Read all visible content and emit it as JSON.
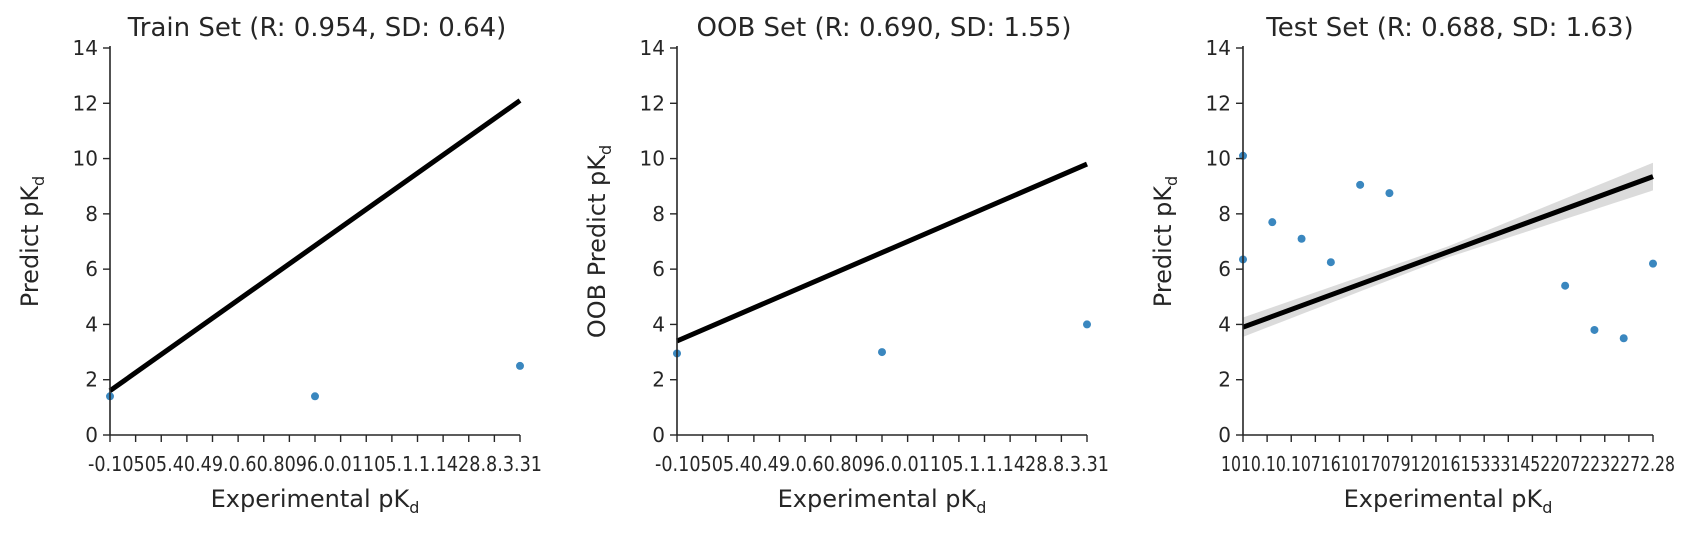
{
  "colors": {
    "points": "#3a87bf",
    "line": "#000000",
    "band": "#bdbdbd",
    "axes": "#262626"
  },
  "chart_data": [
    {
      "type": "scatter",
      "title": "Train Set (R: 0.954, SD: 0.64)",
      "xlabel": "Experimental pK",
      "xlabel_sub": "d",
      "ylabel": "Predict pK",
      "ylabel_sub": "d",
      "xticks": [
        "-0.1",
        "0.05",
        "0.4",
        "0.49",
        "0.6",
        "0.8",
        "0.9",
        "6.1",
        "0.01",
        "0.1",
        "0.5",
        "1.1",
        "1.2",
        "4",
        "2.8",
        "8.3",
        "3.31"
      ],
      "xtick_text": "-0.10505.40.49.0.60.8096.0.01105.1.1.1428.8.3.31",
      "yticks": [
        0,
        2,
        4,
        6,
        8,
        10,
        12,
        14
      ],
      "ylim": [
        0,
        14
      ],
      "x": [
        0,
        8,
        16
      ],
      "y": [
        1.4,
        1.4,
        2.5
      ],
      "xrange": [
        0,
        16
      ],
      "fit": {
        "x": [
          0,
          16
        ],
        "y": [
          1.6,
          12.1
        ]
      },
      "band": false
    },
    {
      "type": "scatter",
      "title": "OOB Set (R: 0.690, SD: 1.55)",
      "xlabel": "Experimental pK",
      "xlabel_sub": "d",
      "ylabel": "OOB Predict pK",
      "ylabel_sub": "d",
      "xticks": [
        "-0.1",
        "0.05",
        "0.4",
        "0.49",
        "0.6",
        "0.8",
        "0.9",
        "6.1",
        "0.01",
        "0.1",
        "0.5",
        "1.1",
        "1.2",
        "4",
        "2.8",
        "8.3",
        "3.31"
      ],
      "xtick_text": "-0.10505.40.49.0.60.8096.0.01105.1.1.1428.8.3.31",
      "yticks": [
        0,
        2,
        4,
        6,
        8,
        10,
        12,
        14
      ],
      "ylim": [
        0,
        14
      ],
      "x": [
        0,
        8,
        16
      ],
      "y": [
        2.95,
        3.0,
        4.0
      ],
      "xrange": [
        0,
        16
      ],
      "fit": {
        "x": [
          0,
          16
        ],
        "y": [
          3.4,
          9.8
        ]
      },
      "band": false
    },
    {
      "type": "scatter",
      "title": "Test Set (R: 0.688, SD: 1.63)",
      "xlabel": "Experimental pK",
      "xlabel_sub": "d",
      "ylabel": "Predict pK",
      "ylabel_sub": "d",
      "xticks": [
        "10",
        "10.1",
        "0.1",
        "0.7",
        "1.6",
        "10.7",
        "17",
        "9.12",
        "10.1",
        "6.1",
        "5.3",
        "3.3",
        "14.5",
        "2.2",
        "0.7",
        "2.2",
        "3.2",
        "27.28"
      ],
      "xtick_text": "1010.10.107161017079120161533314522072232272.28",
      "yticks": [
        0,
        2,
        4,
        6,
        8,
        10,
        12,
        14
      ],
      "ylim": [
        0,
        14
      ],
      "x": [
        0,
        0,
        1,
        2,
        3,
        4,
        5,
        11,
        12,
        13,
        14
      ],
      "y": [
        10.1,
        6.35,
        7.7,
        7.1,
        6.25,
        9.05,
        8.75,
        5.4,
        3.8,
        3.5,
        6.2
      ],
      "xrange": [
        0,
        14
      ],
      "fit": {
        "x": [
          0,
          14
        ],
        "y": [
          3.9,
          9.35
        ]
      },
      "band": true,
      "band_halfwidth": {
        "x": [
          0,
          7,
          14
        ],
        "w": [
          0.35,
          0.2,
          0.5
        ]
      }
    }
  ]
}
